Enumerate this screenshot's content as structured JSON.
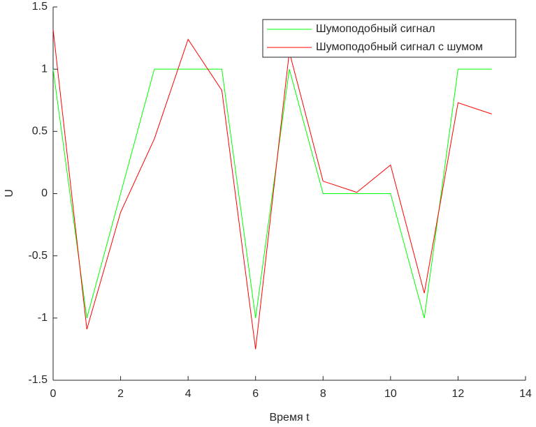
{
  "chart_data": {
    "type": "line",
    "x": [
      0,
      1,
      2,
      3,
      4,
      5,
      6,
      7,
      8,
      9,
      10,
      11,
      12,
      13
    ],
    "series": [
      {
        "name": "Шумоподобный сигнал",
        "color": "#00ff00",
        "values": [
          1,
          -1,
          0,
          1,
          1,
          1,
          -1,
          1,
          0,
          0,
          0,
          -1,
          1,
          1
        ]
      },
      {
        "name": "Шумоподобный сигнал с шумом",
        "color": "#ff0000",
        "values": [
          1.32,
          -1.09,
          -0.15,
          0.44,
          1.24,
          0.83,
          -1.25,
          1.14,
          0.1,
          0.01,
          0.23,
          -0.8,
          0.73,
          0.64
        ]
      }
    ],
    "xlabel": "Время t",
    "ylabel": "U",
    "xlim": [
      0,
      14
    ],
    "xticks": [
      0,
      2,
      4,
      6,
      8,
      10,
      12,
      14
    ],
    "ylim": [
      -1.5,
      1.5
    ],
    "yticks": [
      -1.5,
      -1,
      -0.5,
      0,
      0.5,
      1,
      1.5
    ],
    "legend": "upper-right"
  }
}
